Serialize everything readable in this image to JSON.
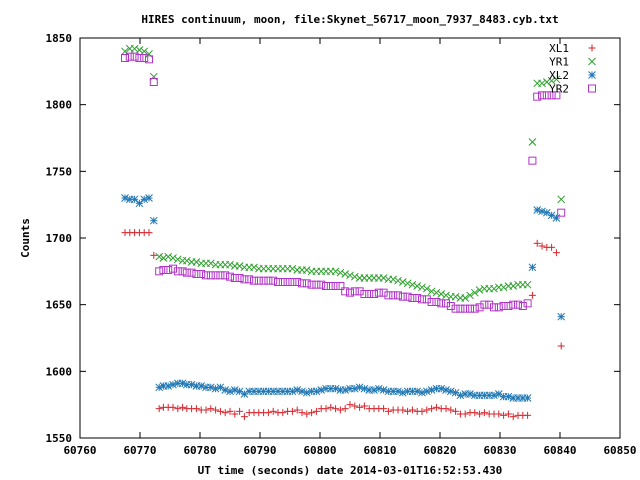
{
  "chart_data": {
    "type": "scatter",
    "title": "HIRES continuum, moon, file:Skynet_56717_moon_7937_8483.cyb.txt",
    "xlabel": "UT time (seconds) date 2014-03-01T16:52:53.430",
    "ylabel": "Counts",
    "xlim": [
      60760,
      60850
    ],
    "ylim": [
      1550,
      1850
    ],
    "grid": false,
    "legend_placement": "top-right",
    "x_ticks": [
      60760,
      60770,
      60780,
      60790,
      60800,
      60810,
      60820,
      60830,
      60840,
      60850
    ],
    "x_tick_labels": [
      "60760",
      "60770",
      "60780",
      "60790",
      "60800",
      "60810",
      "60820",
      "60830",
      "60840",
      "60850"
    ],
    "y_ticks": [
      1550,
      1600,
      1650,
      1700,
      1750,
      1800,
      1850
    ],
    "y_tick_labels": [
      "1550",
      "1600",
      "1650",
      "1700",
      "1750",
      "1800",
      "1850"
    ],
    "series": [
      {
        "name": "XL1",
        "color": "#d6242b",
        "marker": "plus",
        "x": [
          60767.5,
          60768.3,
          60769.1,
          60769.9,
          60770.7,
          60771.5,
          60772.3,
          60773.2,
          60773.9,
          60774.7,
          60775.5,
          60776.3,
          60777.1,
          60777.8,
          60778.6,
          60779.4,
          60780.2,
          60781.0,
          60781.8,
          60782.6,
          60783.4,
          60784.2,
          60785.0,
          60785.8,
          60786.6,
          60787.4,
          60788.2,
          60789.0,
          60789.8,
          60790.6,
          60791.4,
          60792.2,
          60793.0,
          60793.8,
          60794.6,
          60795.4,
          60796.2,
          60797.0,
          60797.8,
          60798.6,
          60799.4,
          60800.2,
          60801.0,
          60801.8,
          60802.6,
          60803.4,
          60804.2,
          60805.0,
          60805.8,
          60806.6,
          60807.4,
          60808.2,
          60809.0,
          60809.8,
          60810.6,
          60811.4,
          60812.2,
          60813.0,
          60813.8,
          60814.6,
          60815.4,
          60816.2,
          60817.0,
          60817.8,
          60818.6,
          60819.4,
          60820.2,
          60821.0,
          60821.8,
          60822.6,
          60823.4,
          60824.2,
          60825.0,
          60825.8,
          60826.6,
          60827.4,
          60828.2,
          60829.0,
          60829.8,
          60830.6,
          60831.4,
          60832.2,
          60833.0,
          60833.8,
          60834.6,
          60835.4,
          60836.2,
          60837.0,
          60837.8,
          60838.6,
          60839.4,
          60840.2
        ],
        "y": [
          1704,
          1704,
          1704,
          1704,
          1704,
          1704,
          1687,
          1572,
          1573,
          1573,
          1573,
          1572,
          1573,
          1572,
          1572,
          1572,
          1571,
          1571,
          1572,
          1571,
          1570,
          1569,
          1570,
          1568,
          1570,
          1566,
          1569,
          1569,
          1569,
          1569,
          1569,
          1570,
          1569,
          1569,
          1570,
          1570,
          1571,
          1569,
          1568,
          1569,
          1570,
          1572,
          1572,
          1573,
          1572,
          1571,
          1572,
          1575,
          1574,
          1573,
          1574,
          1572,
          1572,
          1572,
          1572,
          1570,
          1571,
          1571,
          1571,
          1570,
          1571,
          1570,
          1570,
          1571,
          1572,
          1573,
          1572,
          1572,
          1571,
          1570,
          1568,
          1568,
          1569,
          1569,
          1568,
          1569,
          1568,
          1568,
          1568,
          1567,
          1568,
          1566,
          1567,
          1567,
          1567,
          1657,
          1696,
          1694,
          1693,
          1693,
          1689,
          1619
        ]
      },
      {
        "name": "YR1",
        "color": "#2ca02c",
        "marker": "x",
        "x": [
          60767.5,
          60768.3,
          60769.1,
          60769.9,
          60770.7,
          60771.5,
          60772.3,
          60773.2,
          60773.9,
          60774.7,
          60775.5,
          60776.3,
          60777.1,
          60777.8,
          60778.6,
          60779.4,
          60780.2,
          60781.0,
          60781.8,
          60782.6,
          60783.4,
          60784.2,
          60785.0,
          60785.8,
          60786.6,
          60787.4,
          60788.2,
          60789.0,
          60789.8,
          60790.6,
          60791.4,
          60792.2,
          60793.0,
          60793.8,
          60794.6,
          60795.4,
          60796.2,
          60797.0,
          60797.8,
          60798.6,
          60799.4,
          60800.2,
          60801.0,
          60801.8,
          60802.6,
          60803.4,
          60804.2,
          60805.0,
          60805.8,
          60806.6,
          60807.4,
          60808.2,
          60809.0,
          60809.8,
          60810.6,
          60811.4,
          60812.2,
          60813.0,
          60813.8,
          60814.6,
          60815.4,
          60816.2,
          60817.0,
          60817.8,
          60818.6,
          60819.4,
          60820.2,
          60821.0,
          60821.8,
          60822.6,
          60823.4,
          60824.2,
          60825.0,
          60825.8,
          60826.6,
          60827.4,
          60828.2,
          60829.0,
          60829.8,
          60830.6,
          60831.4,
          60832.2,
          60833.0,
          60833.8,
          60834.6,
          60835.4,
          60836.2,
          60837.0,
          60837.8,
          60838.6,
          60839.4,
          60840.2
        ],
        "y": [
          1840,
          1842,
          1842,
          1841,
          1840,
          1838,
          1821,
          1686,
          1685,
          1686,
          1685,
          1684,
          1683,
          1683,
          1682,
          1682,
          1681,
          1681,
          1681,
          1680,
          1680,
          1680,
          1680,
          1679,
          1679,
          1678,
          1678,
          1678,
          1677,
          1677,
          1677,
          1677,
          1677,
          1677,
          1677,
          1677,
          1676,
          1676,
          1676,
          1675,
          1675,
          1675,
          1675,
          1675,
          1675,
          1674,
          1673,
          1672,
          1671,
          1670,
          1670,
          1670,
          1670,
          1670,
          1670,
          1669,
          1669,
          1668,
          1667,
          1666,
          1665,
          1664,
          1663,
          1662,
          1660,
          1659,
          1658,
          1657,
          1656,
          1656,
          1655,
          1655,
          1657,
          1659,
          1661,
          1662,
          1662,
          1662,
          1663,
          1663,
          1664,
          1664,
          1665,
          1665,
          1665,
          1772,
          1816,
          1816,
          1817,
          1818,
          1819,
          1729
        ]
      },
      {
        "name": "XL2",
        "color": "#1f77b4",
        "marker": "star",
        "x": [
          60767.5,
          60768.3,
          60769.1,
          60769.9,
          60770.7,
          60771.5,
          60772.3,
          60773.2,
          60773.9,
          60774.7,
          60775.5,
          60776.3,
          60777.1,
          60777.8,
          60778.6,
          60779.4,
          60780.2,
          60781.0,
          60781.8,
          60782.6,
          60783.4,
          60784.2,
          60785.0,
          60785.8,
          60786.6,
          60787.4,
          60788.2,
          60789.0,
          60789.8,
          60790.6,
          60791.4,
          60792.2,
          60793.0,
          60793.8,
          60794.6,
          60795.4,
          60796.2,
          60797.0,
          60797.8,
          60798.6,
          60799.4,
          60800.2,
          60801.0,
          60801.8,
          60802.6,
          60803.4,
          60804.2,
          60805.0,
          60805.8,
          60806.6,
          60807.4,
          60808.2,
          60809.0,
          60809.8,
          60810.6,
          60811.4,
          60812.2,
          60813.0,
          60813.8,
          60814.6,
          60815.4,
          60816.2,
          60817.0,
          60817.8,
          60818.6,
          60819.4,
          60820.2,
          60821.0,
          60821.8,
          60822.6,
          60823.4,
          60824.2,
          60825.0,
          60825.8,
          60826.6,
          60827.4,
          60828.2,
          60829.0,
          60829.8,
          60830.6,
          60831.4,
          60832.2,
          60833.0,
          60833.8,
          60834.6,
          60835.4,
          60836.2,
          60837.0,
          60837.8,
          60838.6,
          60839.4,
          60840.2
        ],
        "y": [
          1730,
          1729,
          1729,
          1726,
          1729,
          1730,
          1713,
          1588,
          1589,
          1589,
          1590,
          1591,
          1591,
          1590,
          1590,
          1589,
          1589,
          1588,
          1588,
          1587,
          1588,
          1586,
          1585,
          1586,
          1585,
          1583,
          1585,
          1585,
          1585,
          1585,
          1585,
          1585,
          1585,
          1585,
          1585,
          1585,
          1586,
          1585,
          1584,
          1585,
          1585,
          1586,
          1587,
          1587,
          1587,
          1586,
          1586,
          1587,
          1587,
          1588,
          1587,
          1586,
          1586,
          1587,
          1586,
          1585,
          1585,
          1585,
          1584,
          1585,
          1585,
          1585,
          1584,
          1585,
          1586,
          1587,
          1587,
          1586,
          1585,
          1584,
          1582,
          1583,
          1583,
          1582,
          1582,
          1582,
          1582,
          1582,
          1583,
          1581,
          1581,
          1580,
          1580,
          1580,
          1580,
          1678,
          1721,
          1720,
          1719,
          1717,
          1715,
          1641
        ]
      },
      {
        "name": "YR2",
        "color": "#b233c8",
        "marker": "square",
        "x": [
          60767.5,
          60768.3,
          60769.1,
          60769.9,
          60770.7,
          60771.5,
          60772.3,
          60773.2,
          60773.9,
          60774.7,
          60775.5,
          60776.3,
          60777.1,
          60777.8,
          60778.6,
          60779.4,
          60780.2,
          60781.0,
          60781.8,
          60782.6,
          60783.4,
          60784.2,
          60785.0,
          60785.8,
          60786.6,
          60787.4,
          60788.2,
          60789.0,
          60789.8,
          60790.6,
          60791.4,
          60792.2,
          60793.0,
          60793.8,
          60794.6,
          60795.4,
          60796.2,
          60797.0,
          60797.8,
          60798.6,
          60799.4,
          60800.2,
          60801.0,
          60801.8,
          60802.6,
          60803.4,
          60804.2,
          60805.0,
          60805.8,
          60806.6,
          60807.4,
          60808.2,
          60809.0,
          60809.8,
          60810.6,
          60811.4,
          60812.2,
          60813.0,
          60813.8,
          60814.6,
          60815.4,
          60816.2,
          60817.0,
          60817.8,
          60818.6,
          60819.4,
          60820.2,
          60821.0,
          60821.8,
          60822.6,
          60823.4,
          60824.2,
          60825.0,
          60825.8,
          60826.6,
          60827.4,
          60828.2,
          60829.0,
          60829.8,
          60830.6,
          60831.4,
          60832.2,
          60833.0,
          60833.8,
          60834.6,
          60835.4,
          60836.2,
          60837.0,
          60837.8,
          60838.6,
          60839.4,
          60840.2
        ],
        "y": [
          1835,
          1836,
          1836,
          1835,
          1835,
          1834,
          1817,
          1675,
          1676,
          1676,
          1677,
          1675,
          1675,
          1674,
          1674,
          1673,
          1673,
          1672,
          1672,
          1672,
          1672,
          1672,
          1671,
          1670,
          1670,
          1669,
          1669,
          1668,
          1668,
          1668,
          1668,
          1668,
          1667,
          1667,
          1667,
          1667,
          1667,
          1666,
          1666,
          1665,
          1665,
          1665,
          1664,
          1664,
          1664,
          1664,
          1660,
          1659,
          1660,
          1660,
          1658,
          1658,
          1658,
          1659,
          1659,
          1657,
          1657,
          1657,
          1656,
          1656,
          1655,
          1655,
          1654,
          1654,
          1652,
          1652,
          1651,
          1651,
          1649,
          1647,
          1647,
          1647,
          1647,
          1647,
          1648,
          1650,
          1650,
          1648,
          1648,
          1649,
          1649,
          1650,
          1650,
          1649,
          1651,
          1758,
          1806,
          1807,
          1807,
          1807,
          1807,
          1719
        ]
      }
    ]
  }
}
